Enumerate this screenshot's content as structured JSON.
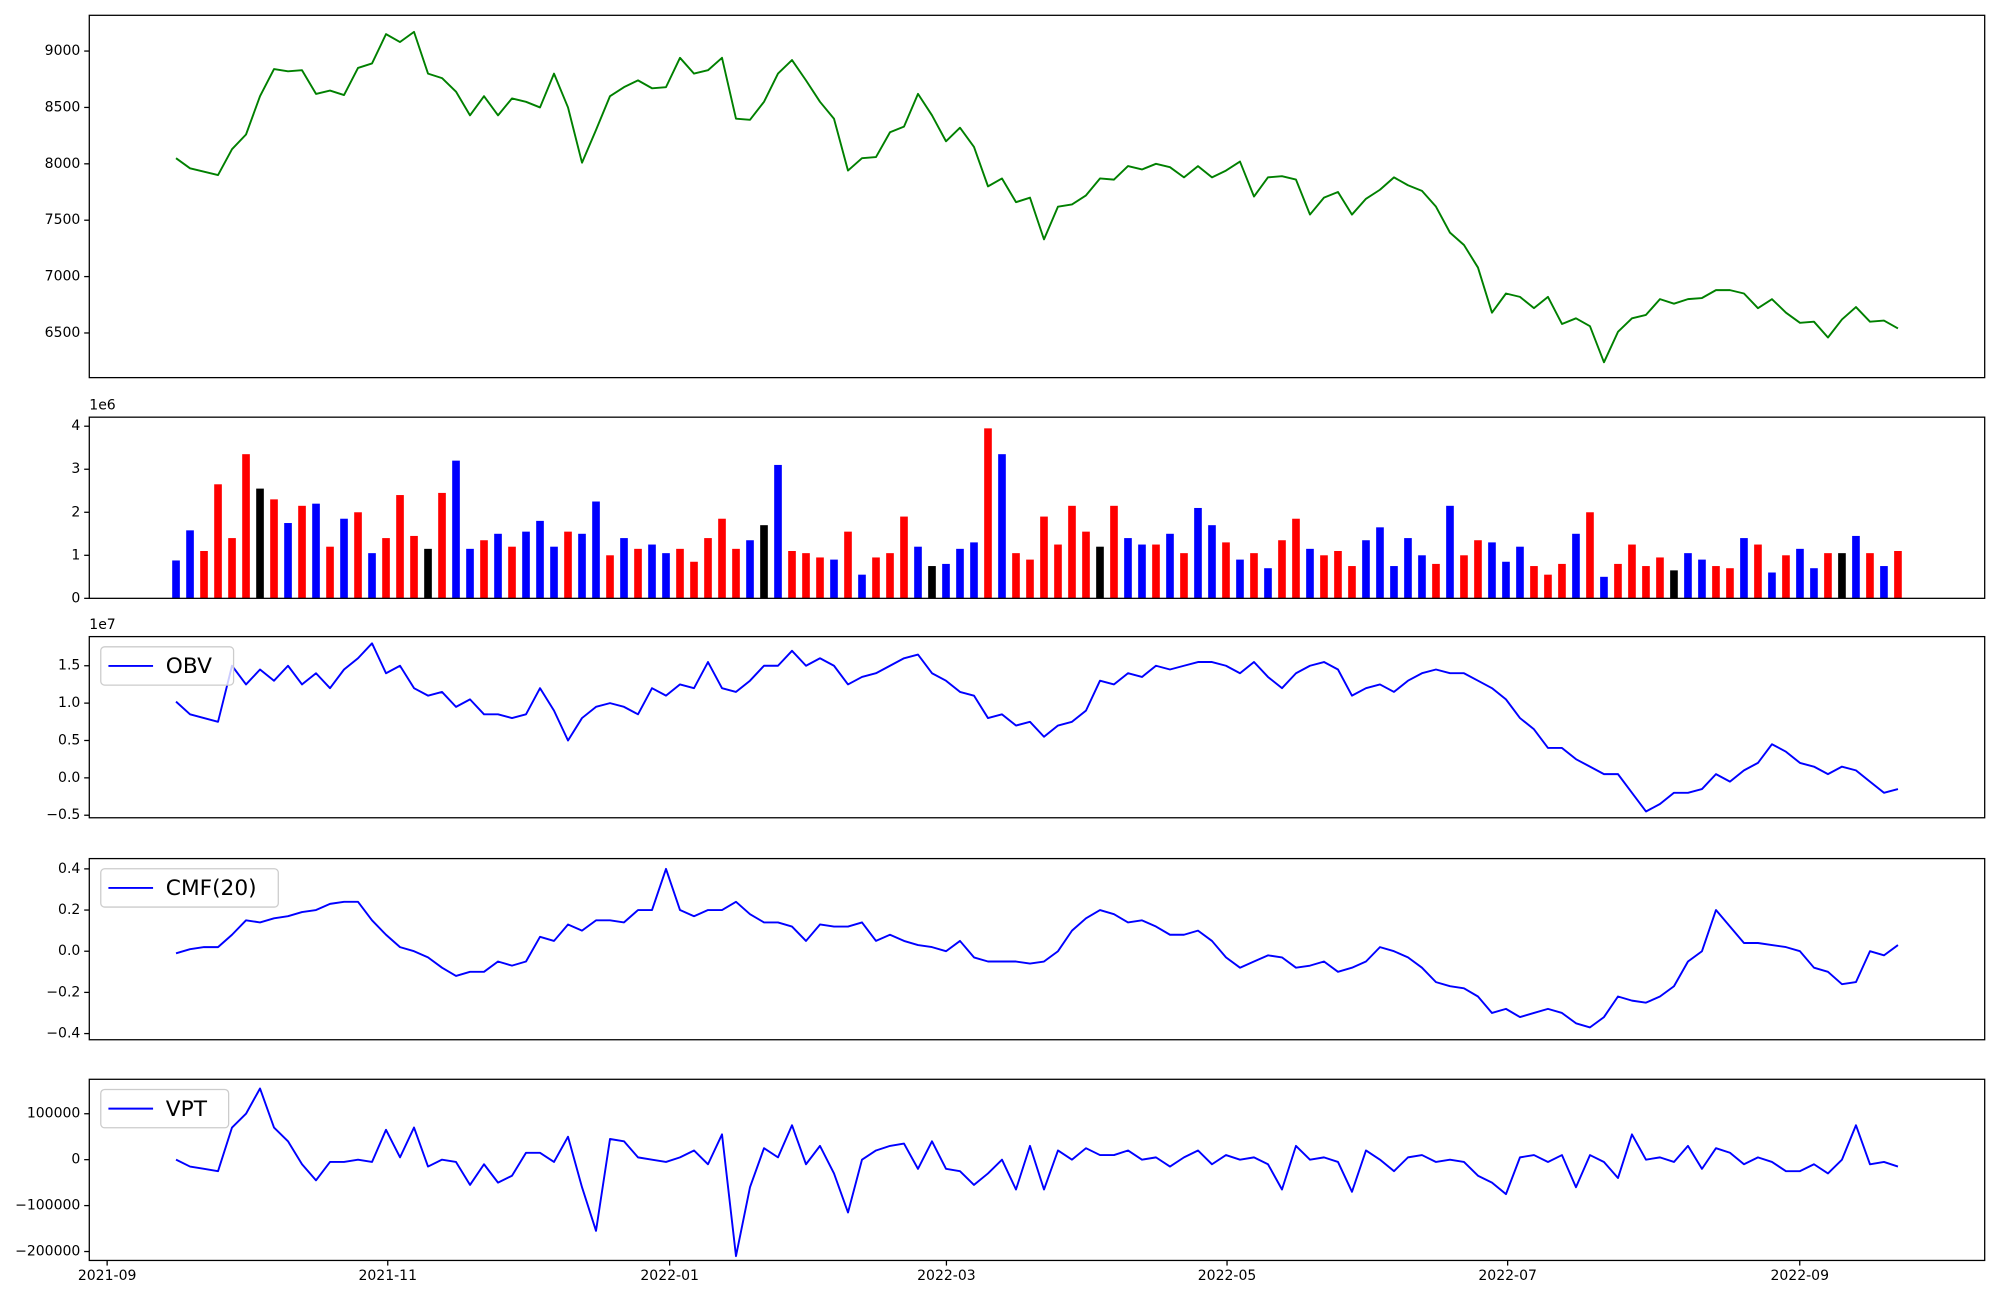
{
  "chart_data": [
    {
      "type": "line",
      "color": "green",
      "values": [
        8050,
        7960,
        7930,
        7900,
        8130,
        8260,
        8600,
        8840,
        8820,
        8830,
        8620,
        8650,
        8610,
        8850,
        8890,
        9150,
        9080,
        9170,
        8800,
        8760,
        8640,
        8430,
        8600,
        8430,
        8580,
        8550,
        8500,
        8800,
        8500,
        8010,
        8300,
        8600,
        8680,
        8740,
        8670,
        8680,
        8940,
        8800,
        8830,
        8940,
        8400,
        8390,
        8550,
        8800,
        8920,
        8740,
        8550,
        8400,
        7940,
        8050,
        8060,
        8280,
        8330,
        8620,
        8430,
        8200,
        8320,
        8150,
        7800,
        7870,
        7660,
        7700,
        7330,
        7620,
        7640,
        7720,
        7870,
        7860,
        7980,
        7950,
        8000,
        7970,
        7880,
        7980,
        7880,
        7940,
        8020,
        7710,
        7880,
        7890,
        7860,
        7550,
        7700,
        7750,
        7550,
        7690,
        7770,
        7880,
        7810,
        7760,
        7620,
        7390,
        7280,
        7080,
        6680,
        6850,
        6820,
        6720,
        6820,
        6580,
        6630,
        6560,
        6240,
        6510,
        6630,
        6660,
        6800,
        6760,
        6800,
        6810,
        6880,
        6880,
        6850,
        6720,
        6800,
        6680,
        6590,
        6600,
        6460,
        6620,
        6730,
        6600,
        6610,
        6540
      ],
      "ylim": [
        6104,
        9317
      ],
      "yticks": [
        6500,
        7000,
        7500,
        8000,
        8500,
        9000
      ]
    },
    {
      "type": "bar",
      "offset_text": "1e6",
      "values": [
        0.88,
        1.58,
        1.1,
        2.65,
        1.4,
        3.35,
        2.55,
        2.3,
        1.75,
        2.15,
        2.2,
        1.2,
        1.85,
        2.0,
        1.05,
        1.4,
        2.4,
        1.45,
        1.15,
        2.45,
        3.2,
        1.15,
        1.35,
        1.5,
        1.2,
        1.55,
        1.8,
        1.2,
        1.55,
        1.5,
        2.25,
        1.0,
        1.4,
        1.15,
        1.25,
        1.05,
        1.15,
        0.85,
        1.4,
        1.85,
        1.15,
        1.35,
        1.7,
        3.1,
        1.1,
        1.05,
        0.95,
        0.9,
        1.55,
        0.55,
        0.95,
        1.05,
        1.9,
        1.2,
        0.75,
        0.8,
        1.15,
        1.3,
        3.95,
        3.35,
        1.05,
        0.9,
        1.9,
        1.25,
        2.15,
        1.55,
        1.2,
        2.15,
        1.4,
        1.25,
        1.25,
        1.5,
        1.05,
        2.1,
        1.7,
        1.3,
        0.9,
        1.05,
        0.7,
        1.35,
        1.85,
        1.15,
        1.0,
        1.1,
        0.75,
        1.35,
        1.65,
        0.75,
        1.4,
        1.0,
        0.8,
        2.15,
        1.0,
        1.35,
        1.3,
        0.85,
        1.2,
        0.75,
        0.55,
        0.8,
        1.5,
        2.0,
        0.5,
        0.8,
        1.25,
        0.75,
        0.95,
        0.65,
        1.05,
        0.9,
        0.75,
        0.7,
        1.4,
        1.25,
        0.6,
        1.0,
        1.15,
        0.7,
        1.05,
        1.05,
        1.45,
        1.05,
        0.75,
        1.1
      ],
      "colors": [
        "blue",
        "blue",
        "red",
        "red",
        "red",
        "red",
        "black",
        "red",
        "blue",
        "red",
        "blue",
        "red",
        "blue",
        "red",
        "blue",
        "red",
        "red",
        "red",
        "black",
        "red",
        "blue",
        "blue",
        "red",
        "blue",
        "red",
        "blue",
        "blue",
        "blue",
        "red",
        "blue",
        "blue",
        "red",
        "blue",
        "red",
        "blue",
        "blue",
        "red",
        "red",
        "red",
        "red",
        "red",
        "blue",
        "black",
        "blue",
        "red",
        "red",
        "red",
        "blue",
        "red",
        "blue",
        "red",
        "red",
        "red",
        "blue",
        "black",
        "blue",
        "blue",
        "blue",
        "red",
        "blue",
        "red",
        "red",
        "red",
        "red",
        "red",
        "red",
        "black",
        "red",
        "blue",
        "blue",
        "red",
        "blue",
        "red",
        "blue",
        "blue",
        "red",
        "blue",
        "red",
        "blue",
        "red",
        "red",
        "blue",
        "red",
        "red",
        "red",
        "blue",
        "blue",
        "blue",
        "blue",
        "blue",
        "red",
        "blue",
        "red",
        "red",
        "blue",
        "blue",
        "blue",
        "red",
        "red",
        "red",
        "blue",
        "red",
        "blue",
        "red",
        "red",
        "red",
        "red",
        "black",
        "blue",
        "blue",
        "red",
        "red",
        "blue",
        "red",
        "blue",
        "red",
        "blue",
        "blue",
        "red",
        "black",
        "blue",
        "red",
        "blue",
        "red"
      ],
      "ylim": [
        0,
        4.21
      ],
      "yticks": [
        0,
        1,
        2,
        3,
        4
      ]
    },
    {
      "type": "line",
      "offset_text": "1e7",
      "legend": "upper left",
      "series": [
        {
          "name": "OBV",
          "color": "blue",
          "values": [
            1.02,
            0.85,
            0.8,
            0.75,
            1.5,
            1.25,
            1.45,
            1.3,
            1.5,
            1.25,
            1.4,
            1.2,
            1.45,
            1.6,
            1.8,
            1.4,
            1.5,
            1.2,
            1.1,
            1.15,
            0.95,
            1.05,
            0.85,
            0.85,
            0.8,
            0.85,
            1.2,
            0.9,
            0.5,
            0.8,
            0.95,
            1.0,
            0.95,
            0.85,
            1.2,
            1.1,
            1.25,
            1.2,
            1.55,
            1.2,
            1.15,
            1.3,
            1.5,
            1.5,
            1.7,
            1.5,
            1.6,
            1.5,
            1.25,
            1.35,
            1.4,
            1.5,
            1.6,
            1.65,
            1.4,
            1.3,
            1.15,
            1.1,
            0.8,
            0.85,
            0.7,
            0.75,
            0.55,
            0.7,
            0.75,
            0.9,
            1.3,
            1.25,
            1.4,
            1.35,
            1.5,
            1.45,
            1.5,
            1.55,
            1.55,
            1.5,
            1.4,
            1.55,
            1.35,
            1.2,
            1.4,
            1.5,
            1.55,
            1.45,
            1.1,
            1.2,
            1.25,
            1.15,
            1.3,
            1.4,
            1.45,
            1.4,
            1.4,
            1.3,
            1.2,
            1.05,
            0.8,
            0.65,
            0.4,
            0.4,
            0.25,
            0.15,
            0.05,
            0.05,
            -0.2,
            -0.45,
            -0.35,
            -0.2,
            -0.2,
            -0.15,
            0.05,
            -0.05,
            0.1,
            0.2,
            0.45,
            0.35,
            0.2,
            0.15,
            0.05,
            0.15,
            0.1,
            -0.05,
            -0.2,
            -0.15
          ]
        }
      ],
      "ylim": [
        -0.534,
        1.89
      ],
      "yticks": [
        {
          "value": -0.5,
          "label": "−0.5"
        },
        {
          "value": 0,
          "label": "0.0"
        },
        0.5,
        {
          "value": 1,
          "label": "1.0"
        },
        1.5
      ]
    },
    {
      "type": "line",
      "legend": "upper left",
      "series": [
        {
          "name": "CMF(20)",
          "color": "blue",
          "values": [
            -0.01,
            0.01,
            0.02,
            0.02,
            0.08,
            0.15,
            0.14,
            0.16,
            0.17,
            0.19,
            0.2,
            0.23,
            0.24,
            0.24,
            0.15,
            0.08,
            0.02,
            0.0,
            -0.03,
            -0.08,
            -0.12,
            -0.1,
            -0.1,
            -0.05,
            -0.07,
            -0.05,
            0.07,
            0.05,
            0.13,
            0.1,
            0.15,
            0.15,
            0.14,
            0.2,
            0.2,
            0.4,
            0.2,
            0.17,
            0.2,
            0.2,
            0.24,
            0.18,
            0.14,
            0.14,
            0.12,
            0.05,
            0.13,
            0.12,
            0.12,
            0.14,
            0.05,
            0.08,
            0.05,
            0.03,
            0.02,
            0.0,
            0.05,
            -0.03,
            -0.05,
            -0.05,
            -0.05,
            -0.06,
            -0.05,
            0.0,
            0.1,
            0.16,
            0.2,
            0.18,
            0.14,
            0.15,
            0.12,
            0.08,
            0.08,
            0.1,
            0.05,
            -0.03,
            -0.08,
            -0.05,
            -0.02,
            -0.03,
            -0.08,
            -0.07,
            -0.05,
            -0.1,
            -0.08,
            -0.05,
            0.02,
            0.0,
            -0.03,
            -0.08,
            -0.15,
            -0.17,
            -0.18,
            -0.22,
            -0.3,
            -0.28,
            -0.32,
            -0.3,
            -0.28,
            -0.3,
            -0.35,
            -0.37,
            -0.32,
            -0.22,
            -0.24,
            -0.25,
            -0.22,
            -0.17,
            -0.05,
            0.0,
            0.2,
            0.12,
            0.04,
            0.04,
            0.03,
            0.02,
            0.0,
            -0.08,
            -0.1,
            -0.16,
            -0.15,
            0.0,
            -0.02,
            0.03
          ]
        }
      ],
      "ylim": [
        -0.43,
        0.45
      ],
      "yticks": [
        {
          "value": -0.4,
          "label": "−0.4"
        },
        {
          "value": -0.2,
          "label": "−0.2"
        },
        {
          "value": 0,
          "label": "0.0"
        },
        0.2,
        0.4
      ]
    },
    {
      "type": "line",
      "legend": "upper left",
      "series": [
        {
          "name": "VPT",
          "color": "blue",
          "values": [
            0,
            -15000,
            -20000,
            -25000,
            70000,
            100000,
            155000,
            70000,
            40000,
            -10000,
            -45000,
            -5000,
            -5000,
            0,
            -5000,
            65000,
            5000,
            70000,
            -15000,
            0,
            -5000,
            -55000,
            -10000,
            -50000,
            -35000,
            15000,
            15000,
            -5000,
            50000,
            -60000,
            -155000,
            45000,
            40000,
            5000,
            0,
            -5000,
            5000,
            20000,
            -10000,
            55000,
            -210000,
            -60000,
            25000,
            5000,
            75000,
            -10000,
            30000,
            -30000,
            -115000,
            0,
            20000,
            30000,
            35000,
            -20000,
            40000,
            -20000,
            -25000,
            -55000,
            -30000,
            0,
            -65000,
            30000,
            -65000,
            20000,
            0,
            25000,
            10000,
            10000,
            20000,
            0,
            5000,
            -15000,
            5000,
            20000,
            -10000,
            10000,
            0,
            5000,
            -10000,
            -65000,
            30000,
            0,
            5000,
            -5000,
            -70000,
            20000,
            0,
            -25000,
            5000,
            10000,
            -5000,
            0,
            -5000,
            -35000,
            -50000,
            -75000,
            5000,
            10000,
            -5000,
            10000,
            -60000,
            10000,
            -5000,
            -40000,
            55000,
            0,
            5000,
            -5000,
            30000,
            -20000,
            25000,
            15000,
            -10000,
            5000,
            -5000,
            -25000,
            -25000,
            -10000,
            -30000,
            0,
            75000,
            -10000,
            -5000,
            -15000
          ]
        }
      ],
      "ylim": [
        -219444,
        175000
      ],
      "yticks": [
        {
          "value": -200000,
          "label": "−200000"
        },
        {
          "value": -100000,
          "label": "−100000"
        },
        0,
        100000
      ],
      "xticks": [
        "2021-09",
        "2021-11",
        "2022-01",
        "2022-03",
        "2022-05",
        "2022-07",
        "2022-09"
      ]
    }
  ]
}
